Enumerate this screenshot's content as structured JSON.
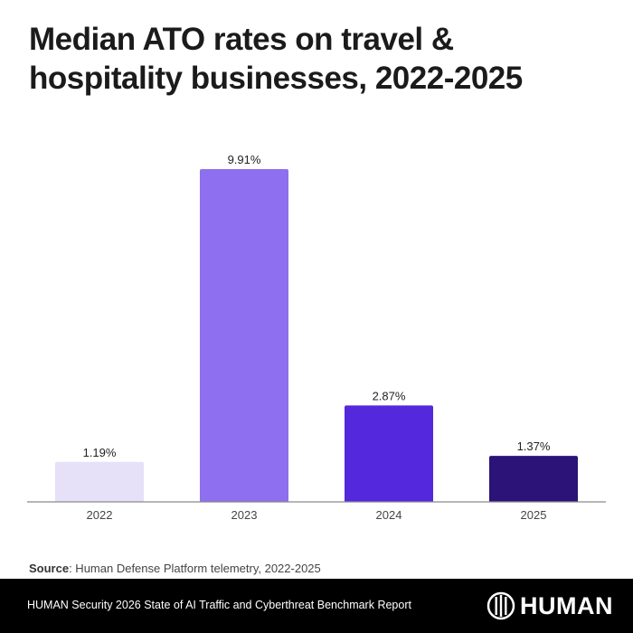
{
  "chart_data": {
    "type": "bar",
    "title": "Median ATO rates on travel & hospitality businesses, 2022-2025",
    "categories": [
      "2022",
      "2023",
      "2024",
      "2025"
    ],
    "values": [
      1.19,
      9.91,
      2.87,
      1.37
    ],
    "data_labels": [
      "1.19%",
      "9.91%",
      "2.87%",
      "1.37%"
    ],
    "colors": [
      "#e6e1f8",
      "#8d6ff0",
      "#5428dd",
      "#2b1378"
    ],
    "xlabel": "",
    "ylabel": "",
    "ylim": [
      0,
      9.91
    ],
    "grid": false,
    "legend": "none"
  },
  "source": {
    "label": "Source",
    "text": ": Human Defense Platform telemetry, 2022-2025"
  },
  "footer": {
    "report": "HUMAN Security 2026 State of AI Traffic and Cyberthreat Benchmark Report",
    "logo_icon": "human-logo-icon",
    "logo_text": "HUMAN"
  }
}
